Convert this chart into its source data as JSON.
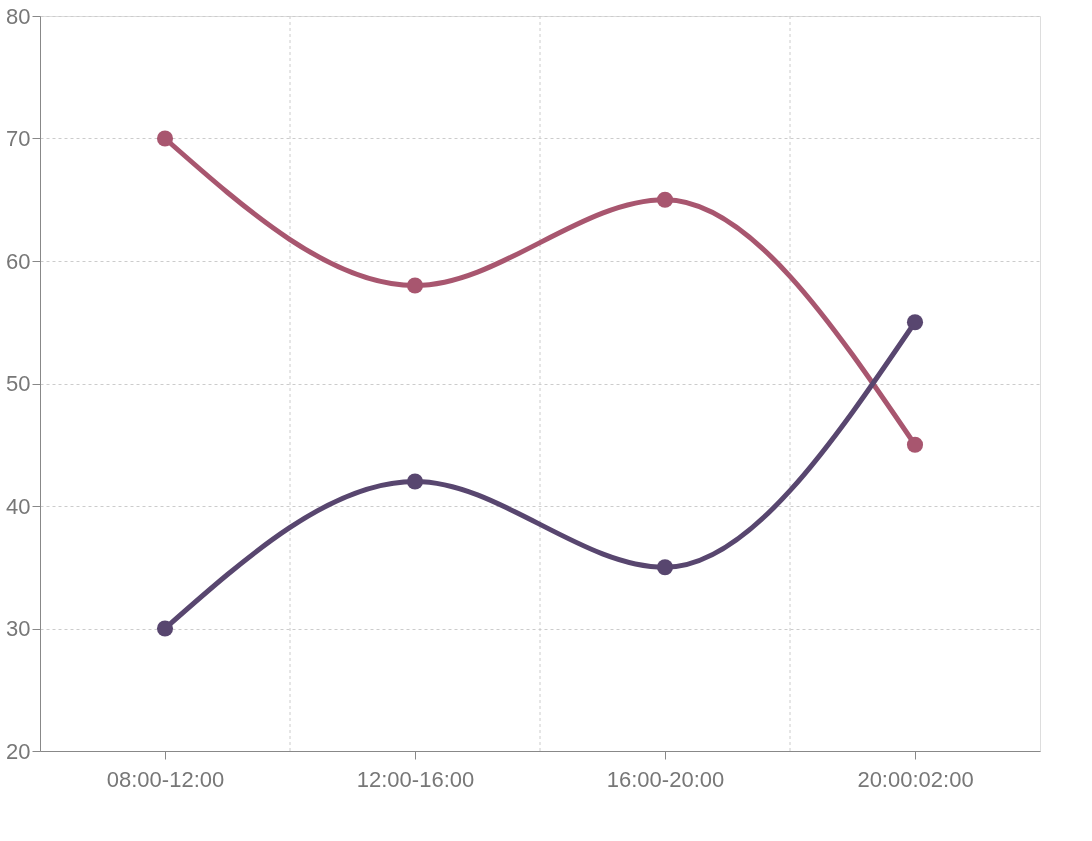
{
  "chart_data": {
    "type": "line",
    "categories": [
      "08:00-12:00",
      "12:00-16:00",
      "16:00-20:00",
      "20:00:02:00"
    ],
    "series": [
      {
        "color": "#a8566f",
        "values": [
          70,
          58,
          65,
          45
        ]
      },
      {
        "color": "#58466f",
        "values": [
          30,
          42,
          35,
          55
        ]
      }
    ],
    "ylim": [
      20,
      80
    ],
    "yticks": [
      20,
      30,
      40,
      50,
      60,
      70,
      80
    ],
    "grid": true,
    "marker": "circle",
    "line_style": "solid"
  }
}
